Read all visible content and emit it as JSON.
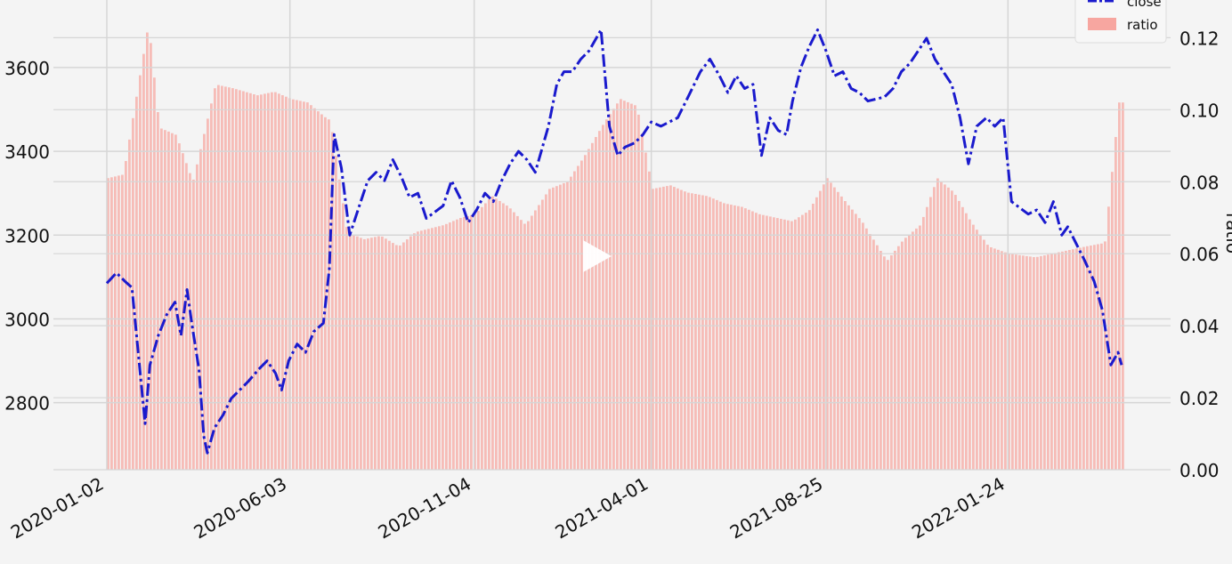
{
  "chart_data": {
    "type": "line+bar",
    "title": "",
    "xlabel": "",
    "y_left": {
      "label": "",
      "lim": [
        2640,
        3740
      ],
      "ticks": [
        2800,
        3000,
        3200,
        3400,
        3600
      ]
    },
    "y_right": {
      "label": "ratio",
      "lim": [
        0.0,
        0.128
      ],
      "ticks": [
        "0.00",
        "0.02",
        "0.04",
        "0.06",
        "0.08",
        "0.10",
        "0.12"
      ]
    },
    "x_tick_labels": [
      "2020-01-02",
      "2020-06-03",
      "2020-11-04",
      "2021-04-01",
      "2021-08-25",
      "2022-01-24"
    ],
    "grid": true,
    "legend": {
      "placement": "top-right",
      "entries": [
        {
          "label": "close",
          "style": "dash-dot line",
          "color": "#1a1acd"
        },
        {
          "label": "ratio",
          "style": "bar",
          "color": "#f7a6a0"
        }
      ]
    },
    "series": [
      {
        "name": "close",
        "kind": "line",
        "axis": "left",
        "color": "#1a1acd",
        "x_dates": [
          "2020-01-02",
          "2020-01-10",
          "2020-01-17",
          "2020-01-23",
          "2020-02-03",
          "2020-02-07",
          "2020-02-14",
          "2020-02-21",
          "2020-02-28",
          "2020-03-04",
          "2020-03-09",
          "2020-03-13",
          "2020-03-19",
          "2020-03-23",
          "2020-03-26",
          "2020-04-01",
          "2020-04-08",
          "2020-04-15",
          "2020-04-22",
          "2020-04-29",
          "2020-05-08",
          "2020-05-15",
          "2020-05-22",
          "2020-05-27",
          "2020-06-02",
          "2020-06-09",
          "2020-06-16",
          "2020-06-23",
          "2020-07-01",
          "2020-07-06",
          "2020-07-10",
          "2020-07-16",
          "2020-07-23",
          "2020-07-31",
          "2020-08-07",
          "2020-08-14",
          "2020-08-21",
          "2020-08-28",
          "2020-09-04",
          "2020-09-11",
          "2020-09-18",
          "2020-09-25",
          "2020-10-09",
          "2020-10-16",
          "2020-10-23",
          "2020-10-30",
          "2020-11-06",
          "2020-11-13",
          "2020-11-20",
          "2020-11-27",
          "2020-12-04",
          "2020-12-11",
          "2020-12-18",
          "2020-12-25",
          "2021-01-05",
          "2021-01-12",
          "2021-01-18",
          "2021-01-25",
          "2021-02-01",
          "2021-02-08",
          "2021-02-18",
          "2021-02-25",
          "2021-03-04",
          "2021-03-10",
          "2021-03-18",
          "2021-03-25",
          "2021-04-01",
          "2021-04-09",
          "2021-04-16",
          "2021-04-23",
          "2021-04-30",
          "2021-05-12",
          "2021-05-20",
          "2021-05-28",
          "2021-06-04",
          "2021-06-11",
          "2021-06-18",
          "2021-06-25",
          "2021-07-02",
          "2021-07-09",
          "2021-07-16",
          "2021-07-23",
          "2021-07-28",
          "2021-08-04",
          "2021-08-11",
          "2021-08-18",
          "2021-08-25",
          "2021-09-01",
          "2021-09-08",
          "2021-09-15",
          "2021-09-22",
          "2021-09-29",
          "2021-10-13",
          "2021-10-20",
          "2021-10-27",
          "2021-11-03",
          "2021-11-10",
          "2021-11-17",
          "2021-11-24",
          "2021-12-01",
          "2021-12-08",
          "2021-12-15",
          "2021-12-22",
          "2021-12-29",
          "2022-01-06",
          "2022-01-13",
          "2022-01-20",
          "2022-01-27",
          "2022-02-10",
          "2022-02-17",
          "2022-02-24",
          "2022-03-03",
          "2022-03-10",
          "2022-03-15",
          "2022-03-22",
          "2022-03-29",
          "2022-04-06",
          "2022-04-13",
          "2022-04-20",
          "2022-04-26",
          "2022-04-29"
        ],
        "values": [
          3085,
          3110,
          3090,
          3075,
          2750,
          2890,
          2960,
          3010,
          3040,
          2960,
          3070,
          2990,
          2880,
          2720,
          2680,
          2740,
          2770,
          2810,
          2830,
          2850,
          2880,
          2900,
          2870,
          2830,
          2900,
          2940,
          2920,
          2970,
          2990,
          3120,
          3440,
          3360,
          3200,
          3270,
          3330,
          3350,
          3330,
          3380,
          3340,
          3290,
          3300,
          3240,
          3270,
          3330,
          3290,
          3230,
          3260,
          3300,
          3280,
          3330,
          3370,
          3400,
          3380,
          3350,
          3460,
          3560,
          3590,
          3590,
          3620,
          3640,
          3690,
          3460,
          3390,
          3410,
          3420,
          3440,
          3470,
          3460,
          3470,
          3480,
          3520,
          3590,
          3620,
          3580,
          3540,
          3580,
          3550,
          3560,
          3390,
          3480,
          3450,
          3440,
          3520,
          3600,
          3650,
          3690,
          3640,
          3580,
          3590,
          3550,
          3540,
          3520,
          3530,
          3550,
          3590,
          3610,
          3640,
          3670,
          3620,
          3590,
          3560,
          3480,
          3370,
          3460,
          3480,
          3460,
          3480,
          3280,
          3250,
          3260,
          3230,
          3280,
          3200,
          3220,
          3180,
          3140,
          3090,
          3020,
          2890,
          2920,
          2890
        ]
      },
      {
        "name": "ratio",
        "kind": "bar",
        "axis": "right",
        "color": "#f7a6a0",
        "x_dates": [
          "2020-01-02",
          "2020-01-15",
          "2020-02-05",
          "2020-02-14",
          "2020-02-28",
          "2020-03-13",
          "2020-04-01",
          "2020-04-15",
          "2020-05-06",
          "2020-05-20",
          "2020-06-03",
          "2020-06-17",
          "2020-07-01",
          "2020-07-06",
          "2020-07-20",
          "2020-08-03",
          "2020-08-17",
          "2020-09-01",
          "2020-09-15",
          "2020-10-09",
          "2020-10-23",
          "2020-11-04",
          "2020-11-18",
          "2020-12-02",
          "2020-12-16",
          "2021-01-05",
          "2021-01-20",
          "2021-02-03",
          "2021-02-19",
          "2021-03-05",
          "2021-03-19",
          "2021-04-01",
          "2021-04-16",
          "2021-04-30",
          "2021-05-17",
          "2021-05-31",
          "2021-06-15",
          "2021-06-29",
          "2021-07-13",
          "2021-07-27",
          "2021-08-10",
          "2021-08-25",
          "2021-09-08",
          "2021-09-23",
          "2021-10-14",
          "2021-10-28",
          "2021-11-11",
          "2021-11-25",
          "2021-12-09",
          "2021-12-23",
          "2022-01-07",
          "2022-01-24",
          "2022-02-15",
          "2022-03-01",
          "2022-03-15",
          "2022-03-29",
          "2022-04-14",
          "2022-04-26"
        ],
        "values": [
          0.081,
          0.082,
          0.124,
          0.095,
          0.093,
          0.08,
          0.107,
          0.106,
          0.104,
          0.105,
          0.103,
          0.102,
          0.098,
          0.097,
          0.066,
          0.064,
          0.065,
          0.062,
          0.066,
          0.068,
          0.07,
          0.071,
          0.076,
          0.073,
          0.068,
          0.078,
          0.08,
          0.087,
          0.096,
          0.103,
          0.101,
          0.078,
          0.079,
          0.077,
          0.076,
          0.074,
          0.073,
          0.071,
          0.07,
          0.069,
          0.072,
          0.081,
          0.075,
          0.069,
          0.058,
          0.064,
          0.068,
          0.081,
          0.077,
          0.069,
          0.062,
          0.06,
          0.059,
          0.06,
          0.061,
          0.062,
          0.063,
          0.102
        ]
      }
    ]
  },
  "video": {
    "play_icon": "play-icon"
  }
}
